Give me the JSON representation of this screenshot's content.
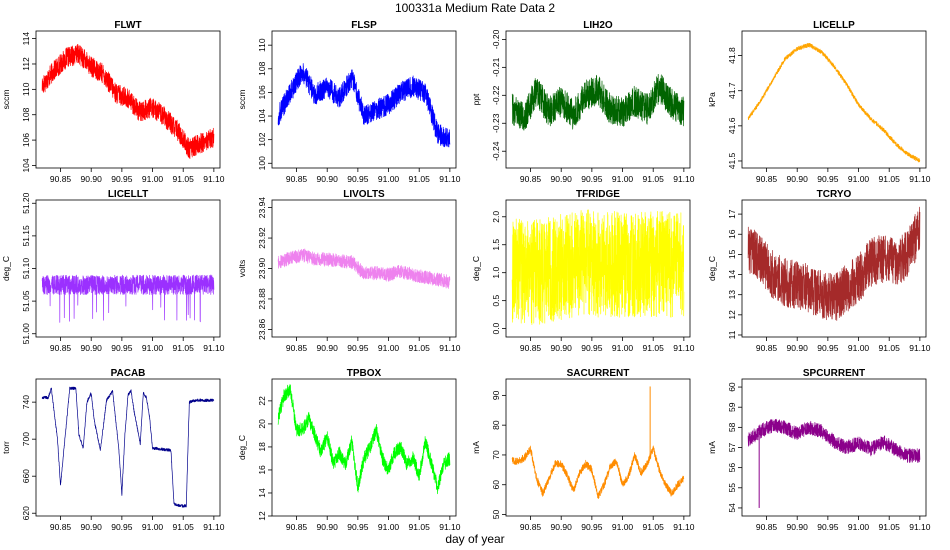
{
  "figure": {
    "title": "100331a   Medium Rate Data 2",
    "xlabel": "day of year"
  },
  "chart_data": [
    {
      "type": "line",
      "title": "FLWT",
      "xlabel": "day of year",
      "ylabel": "sccm",
      "color": "#ff0000",
      "xlim": [
        90.81,
        91.11
      ],
      "ylim": [
        103.8,
        114.6
      ],
      "yticks": [
        104,
        106,
        108,
        110,
        112,
        114
      ],
      "ytick_labels": [
        "104",
        "106",
        "108",
        "110",
        "112",
        "114"
      ],
      "xticks": [
        90.85,
        90.9,
        90.95,
        91.0,
        91.05,
        91.1
      ],
      "xtick_labels": [
        "90.85",
        "90.90",
        "90.95",
        "91.00",
        "91.05",
        "91.10"
      ],
      "noise": 1.6,
      "x": [
        90.82,
        90.84,
        90.86,
        90.88,
        90.9,
        90.92,
        90.94,
        90.96,
        90.98,
        91.0,
        91.02,
        91.04,
        91.06,
        91.08,
        91.1
      ],
      "series": [
        {
          "name": "FLWT",
          "values": [
            110.3,
            111.5,
            112.5,
            112.8,
            111.8,
            111.2,
            109.7,
            109.3,
            108.2,
            108.6,
            107.8,
            106.8,
            105.3,
            105.8,
            106.2
          ]
        }
      ]
    },
    {
      "type": "line",
      "title": "FLSP",
      "xlabel": "day of year",
      "ylabel": "sccm",
      "color": "#0000ff",
      "xlim": [
        90.81,
        91.11
      ],
      "ylim": [
        99.6,
        111.2
      ],
      "yticks": [
        100,
        102,
        104,
        106,
        108,
        110
      ],
      "ytick_labels": [
        "100",
        "102",
        "104",
        "106",
        "108",
        "110"
      ],
      "xticks": [
        90.85,
        90.9,
        90.95,
        91.0,
        91.05,
        91.1
      ],
      "xtick_labels": [
        "90.85",
        "90.90",
        "90.95",
        "91.00",
        "91.05",
        "91.10"
      ],
      "noise": 1.8,
      "x": [
        90.82,
        90.84,
        90.86,
        90.88,
        90.9,
        90.92,
        90.94,
        90.96,
        90.98,
        91.0,
        91.02,
        91.04,
        91.06,
        91.08,
        91.1
      ],
      "series": [
        {
          "name": "FLSP",
          "values": [
            104.0,
            106.0,
            107.8,
            105.8,
            106.5,
            105.5,
            107.3,
            104.0,
            104.5,
            105.0,
            106.0,
            106.5,
            106.0,
            102.5,
            102.0
          ]
        }
      ]
    },
    {
      "type": "line",
      "title": "LIH2O",
      "xlabel": "day of year",
      "ylabel": "ppt",
      "color": "#006400",
      "xlim": [
        90.81,
        91.11
      ],
      "ylim": [
        -0.246,
        -0.197
      ],
      "yticks": [
        -0.24,
        -0.23,
        -0.22,
        -0.21,
        -0.2
      ],
      "ytick_labels": [
        "-0.24",
        "-0.23",
        "-0.22",
        "-0.21",
        "-0.20"
      ],
      "xticks": [
        90.85,
        90.9,
        90.95,
        91.0,
        91.05,
        91.1
      ],
      "xtick_labels": [
        "90.85",
        "90.90",
        "90.95",
        "91.00",
        "91.05",
        "91.10"
      ],
      "noise": 0.011,
      "x": [
        90.82,
        90.84,
        90.86,
        90.88,
        90.9,
        90.92,
        90.94,
        90.96,
        90.98,
        91.0,
        91.02,
        91.04,
        91.06,
        91.08,
        91.1
      ],
      "series": [
        {
          "name": "LIH2O",
          "values": [
            -0.225,
            -0.228,
            -0.218,
            -0.226,
            -0.222,
            -0.227,
            -0.22,
            -0.218,
            -0.225,
            -0.226,
            -0.222,
            -0.225,
            -0.217,
            -0.223,
            -0.226
          ]
        }
      ]
    },
    {
      "type": "line",
      "title": "LICELLP",
      "xlabel": "day of year",
      "ylabel": "kPa",
      "color": "#ffa500",
      "xlim": [
        90.81,
        91.11
      ],
      "ylim": [
        41.48,
        41.87
      ],
      "yticks": [
        41.5,
        41.6,
        41.7,
        41.8
      ],
      "ytick_labels": [
        "41.5",
        "41.6",
        "41.7",
        "41.8"
      ],
      "xticks": [
        90.85,
        90.9,
        90.95,
        91.0,
        91.05,
        91.1
      ],
      "xtick_labels": [
        "90.85",
        "90.90",
        "90.95",
        "91.00",
        "91.05",
        "91.10"
      ],
      "noise": 0.012,
      "x": [
        90.82,
        90.84,
        90.86,
        90.88,
        90.9,
        90.92,
        90.94,
        90.96,
        90.98,
        91.0,
        91.02,
        91.04,
        91.06,
        91.08,
        91.1
      ],
      "series": [
        {
          "name": "LICELLP",
          "values": [
            41.62,
            41.67,
            41.73,
            41.79,
            41.82,
            41.83,
            41.81,
            41.77,
            41.72,
            41.66,
            41.62,
            41.59,
            41.55,
            41.52,
            41.5
          ]
        }
      ]
    },
    {
      "type": "line",
      "title": "LICELLT",
      "xlabel": "day of year",
      "ylabel": "deg_C",
      "color": "#9b30ff",
      "xlim": [
        90.81,
        91.11
      ],
      "ylim": [
        50.995,
        51.205
      ],
      "yticks": [
        51.0,
        51.05,
        51.1,
        51.15,
        51.2
      ],
      "ytick_labels": [
        "51.00",
        "51.05",
        "51.10",
        "51.15",
        "51.20"
      ],
      "xticks": [
        90.85,
        90.9,
        90.95,
        91.0,
        91.05,
        91.1
      ],
      "xtick_labels": [
        "90.85",
        "90.90",
        "90.95",
        "91.00",
        "91.05",
        "91.10"
      ],
      "noise": 0.03,
      "x": [
        90.82,
        91.1
      ],
      "series": [
        {
          "name": "LICELLT",
          "values": [
            51.075,
            51.075
          ]
        }
      ]
    },
    {
      "type": "line",
      "title": "LIVOLTS",
      "xlabel": "day of year",
      "ylabel": "volts",
      "color": "#ee82ee",
      "xlim": [
        90.81,
        91.11
      ],
      "ylim": [
        23.855,
        23.945
      ],
      "yticks": [
        23.86,
        23.88,
        23.9,
        23.92,
        23.94
      ],
      "ytick_labels": [
        "23.86",
        "23.88",
        "23.90",
        "23.92",
        "23.94"
      ],
      "xticks": [
        90.85,
        90.9,
        90.95,
        91.0,
        91.05,
        91.1
      ],
      "xtick_labels": [
        "90.85",
        "90.90",
        "90.95",
        "91.00",
        "91.05",
        "91.10"
      ],
      "noise": 0.009,
      "x": [
        90.82,
        90.84,
        90.86,
        90.88,
        90.9,
        90.92,
        90.94,
        90.96,
        90.98,
        91.0,
        91.02,
        91.04,
        91.06,
        91.08,
        91.1
      ],
      "series": [
        {
          "name": "LIVOLTS",
          "values": [
            23.904,
            23.907,
            23.909,
            23.906,
            23.906,
            23.905,
            23.904,
            23.897,
            23.897,
            23.896,
            23.898,
            23.896,
            23.894,
            23.893,
            23.891
          ]
        }
      ]
    },
    {
      "type": "line",
      "title": "TFRIDGE",
      "xlabel": "day of year",
      "ylabel": "deg_C",
      "color": "#ffff00",
      "xlim": [
        90.81,
        91.11
      ],
      "ylim": [
        -0.15,
        2.3
      ],
      "yticks": [
        0.0,
        0.5,
        1.0,
        1.5,
        2.0
      ],
      "ytick_labels": [
        "0.0",
        "0.5",
        "1.0",
        "1.5",
        "2.0"
      ],
      "xticks": [
        90.85,
        90.9,
        90.95,
        91.0,
        91.05,
        91.1
      ],
      "xtick_labels": [
        "90.85",
        "90.90",
        "90.95",
        "91.00",
        "91.05",
        "91.10"
      ],
      "noise": 1.9,
      "x": [
        90.82,
        90.84,
        90.86,
        90.88,
        90.9,
        90.92,
        90.94,
        90.96,
        90.98,
        91.0,
        91.02,
        91.04,
        91.06,
        91.08,
        91.1
      ],
      "series": [
        {
          "name": "TFRIDGE",
          "values": [
            1.0,
            1.05,
            1.0,
            1.05,
            1.1,
            1.15,
            1.2,
            1.15,
            1.15,
            1.15,
            1.15,
            1.15,
            1.15,
            1.15,
            1.15
          ]
        }
      ]
    },
    {
      "type": "line",
      "title": "TCRYO",
      "xlabel": "day of year",
      "ylabel": "deg_C",
      "color": "#a52a2a",
      "xlim": [
        90.81,
        91.11
      ],
      "ylim": [
        10.9,
        17.7
      ],
      "yticks": [
        11,
        12,
        13,
        14,
        15,
        16,
        17
      ],
      "ytick_labels": [
        "11",
        "12",
        "13",
        "14",
        "15",
        "16",
        "17"
      ],
      "xticks": [
        90.85,
        90.9,
        90.95,
        91.0,
        91.05,
        91.1
      ],
      "xtick_labels": [
        "90.85",
        "90.90",
        "90.95",
        "91.00",
        "91.05",
        "91.10"
      ],
      "noise": 2.4,
      "x": [
        90.82,
        90.84,
        90.86,
        90.88,
        90.9,
        90.92,
        90.94,
        90.96,
        90.98,
        91.0,
        91.02,
        91.04,
        91.06,
        91.08,
        91.1
      ],
      "series": [
        {
          "name": "TCRYO",
          "values": [
            15.3,
            14.8,
            14.0,
            13.6,
            13.5,
            13.3,
            13.0,
            12.8,
            13.3,
            13.8,
            14.6,
            14.8,
            14.6,
            15.0,
            16.3
          ]
        }
      ]
    },
    {
      "type": "line",
      "title": "PACAB",
      "xlabel": "day of year",
      "ylabel": "torr",
      "color": "#00008b",
      "xlim": [
        90.81,
        91.11
      ],
      "ylim": [
        617,
        765
      ],
      "yticks": [
        620,
        660,
        700,
        740
      ],
      "ytick_labels": [
        "620",
        "660",
        "700",
        "740"
      ],
      "xticks": [
        90.85,
        90.9,
        90.95,
        91.0,
        91.05,
        91.1
      ],
      "xtick_labels": [
        "90.85",
        "90.90",
        "90.95",
        "91.00",
        "91.05",
        "91.10"
      ],
      "noise": 3,
      "x": [
        90.82,
        90.83,
        90.835,
        90.845,
        90.85,
        90.86,
        90.865,
        90.875,
        90.88,
        90.887,
        90.893,
        90.9,
        90.905,
        90.915,
        90.925,
        90.935,
        90.94,
        90.945,
        90.95,
        90.955,
        90.96,
        90.965,
        90.97,
        90.98,
        90.985,
        90.99,
        90.995,
        91.0,
        91.005,
        91.03,
        91.035,
        91.045,
        91.055,
        91.06,
        91.07,
        91.075,
        91.1
      ],
      "series": [
        {
          "name": "PACAB",
          "values": [
            745,
            745,
            755,
            700,
            650,
            720,
            755,
            755,
            705,
            690,
            740,
            750,
            720,
            688,
            742,
            752,
            720,
            690,
            640,
            705,
            748,
            752,
            730,
            695,
            750,
            745,
            725,
            690,
            690,
            688,
            630,
            628,
            628,
            740,
            742,
            742,
            742
          ]
        }
      ]
    },
    {
      "type": "line",
      "title": "TPBOX",
      "xlabel": "day of year",
      "ylabel": "deg_C",
      "color": "#00ff00",
      "xlim": [
        90.81,
        91.11
      ],
      "ylim": [
        12,
        23.9
      ],
      "yticks": [
        12,
        14,
        16,
        18,
        20,
        22
      ],
      "ytick_labels": [
        "12",
        "14",
        "16",
        "18",
        "20",
        "22"
      ],
      "xticks": [
        90.85,
        90.9,
        90.95,
        91.0,
        91.05,
        91.1
      ],
      "xtick_labels": [
        "90.85",
        "90.90",
        "90.95",
        "91.00",
        "91.05",
        "91.10"
      ],
      "noise": 1.2,
      "x": [
        90.82,
        90.83,
        90.84,
        90.85,
        90.86,
        90.87,
        90.88,
        90.89,
        90.9,
        90.91,
        90.92,
        90.93,
        90.94,
        90.95,
        90.96,
        90.97,
        90.98,
        90.99,
        91.0,
        91.01,
        91.02,
        91.03,
        91.04,
        91.05,
        91.06,
        91.07,
        91.08,
        91.09,
        91.1
      ],
      "series": [
        {
          "name": "TPBOX",
          "values": [
            20.5,
            22.5,
            23.0,
            19.5,
            19.5,
            20.5,
            19.0,
            17.5,
            19.0,
            16.5,
            17.5,
            16.5,
            18.5,
            14.5,
            17.0,
            18.0,
            19.5,
            17.0,
            16.0,
            17.5,
            18.0,
            16.5,
            17.0,
            15.5,
            18.5,
            16.5,
            14.5,
            16.5,
            17.0
          ]
        }
      ]
    },
    {
      "type": "line",
      "title": "SACURRENT",
      "xlabel": "day of year",
      "ylabel": "mA",
      "color": "#ff8c00",
      "xlim": [
        90.81,
        91.11
      ],
      "ylim": [
        49.5,
        95.5
      ],
      "yticks": [
        50,
        60,
        70,
        80,
        90
      ],
      "ytick_labels": [
        "50",
        "60",
        "70",
        "80",
        "90"
      ],
      "xticks": [
        90.85,
        90.9,
        90.95,
        91.0,
        91.05,
        91.1
      ],
      "xtick_labels": [
        "90.85",
        "90.90",
        "90.95",
        "91.00",
        "91.05",
        "91.10"
      ],
      "noise": 2.5,
      "spike": {
        "x": 91.045,
        "value": 93
      },
      "x": [
        90.82,
        90.83,
        90.84,
        90.85,
        90.86,
        90.87,
        90.88,
        90.89,
        90.9,
        90.91,
        90.92,
        90.93,
        90.94,
        90.95,
        90.96,
        90.97,
        90.98,
        90.99,
        91.0,
        91.01,
        91.02,
        91.03,
        91.04,
        91.05,
        91.06,
        91.07,
        91.08,
        91.09,
        91.1
      ],
      "series": [
        {
          "name": "SACURRENT",
          "values": [
            68,
            68,
            69,
            72,
            62,
            57,
            62,
            67,
            67,
            63,
            58,
            64,
            67,
            65,
            56,
            60,
            66,
            68,
            60,
            63,
            70,
            64,
            67,
            72,
            65,
            60,
            57,
            60,
            62
          ]
        }
      ]
    },
    {
      "type": "line",
      "title": "SPCURRENT",
      "xlabel": "day of year",
      "ylabel": "mA",
      "color": "#8b008b",
      "xlim": [
        90.81,
        91.11
      ],
      "ylim": [
        53.6,
        60.4
      ],
      "yticks": [
        54,
        55,
        56,
        57,
        58,
        59,
        60
      ],
      "ytick_labels": [
        "54",
        "55",
        "56",
        "57",
        "58",
        "59",
        "60"
      ],
      "xticks": [
        90.85,
        90.9,
        90.95,
        91.0,
        91.05,
        91.1
      ],
      "xtick_labels": [
        "90.85",
        "90.90",
        "90.95",
        "91.00",
        "91.05",
        "91.10"
      ],
      "noise": 0.7,
      "spike": {
        "x": 90.838,
        "value": 54.0
      },
      "x": [
        90.82,
        90.84,
        90.86,
        90.88,
        90.9,
        90.92,
        90.94,
        90.96,
        90.98,
        91.0,
        91.02,
        91.04,
        91.06,
        91.08,
        91.1
      ],
      "series": [
        {
          "name": "SPCURRENT",
          "values": [
            57.4,
            57.8,
            58.1,
            58.0,
            57.7,
            58.0,
            57.8,
            57.3,
            57.0,
            57.2,
            56.9,
            57.3,
            56.9,
            56.6,
            56.6
          ]
        }
      ]
    }
  ]
}
